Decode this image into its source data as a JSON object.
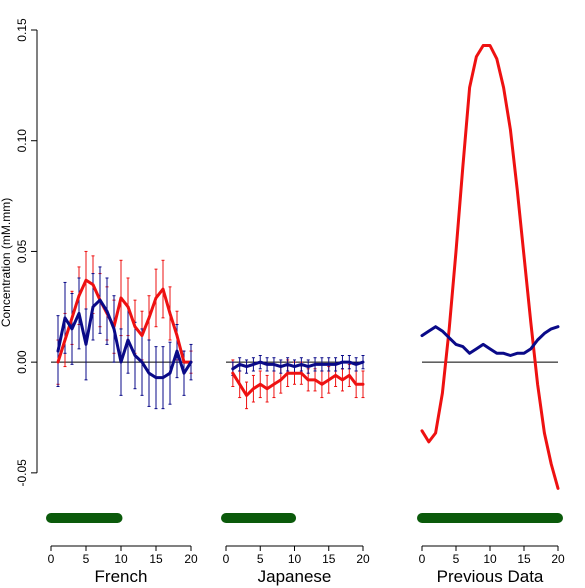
{
  "chart_data": {
    "type": "line",
    "ylabel": "Concentration (mM.mm)",
    "ylim": [
      -0.06,
      0.15
    ],
    "yticks": [
      -0.05,
      0.0,
      0.05,
      0.1,
      0.15
    ],
    "ytick_labels": [
      "-0.05",
      "0.00",
      "0.05",
      "0.10",
      "0.15"
    ],
    "colors": {
      "red": "#ee1111",
      "blue": "#0a0a88",
      "bar": "#0b5a0b",
      "zero": "#000000"
    },
    "panels": [
      {
        "label": "French",
        "xlim": [
          0,
          20
        ],
        "xticks": [
          0,
          5,
          10,
          15,
          20
        ],
        "xtick_labels": [
          "0",
          "5",
          "10",
          "15",
          "20"
        ],
        "bar": [
          0,
          9.5
        ],
        "series": [
          {
            "color": "red",
            "x": [
              1,
              2,
              3,
              4,
              5,
              6,
              7,
              8,
              9,
              10,
              11,
              12,
              13,
              14,
              15,
              16,
              17,
              18,
              19,
              20
            ],
            "y": [
              0.0,
              0.01,
              0.02,
              0.03,
              0.037,
              0.035,
              0.028,
              0.022,
              0.016,
              0.029,
              0.025,
              0.016,
              0.012,
              0.02,
              0.029,
              0.033,
              0.022,
              0.012,
              0.0,
              0.0
            ],
            "err": [
              0.01,
              0.012,
              0.012,
              0.013,
              0.013,
              0.013,
              0.012,
              0.012,
              0.012,
              0.017,
              0.013,
              0.012,
              0.011,
              0.01,
              0.013,
              0.013,
              0.012,
              0.011,
              0.005,
              0.005
            ]
          },
          {
            "color": "blue",
            "x": [
              1,
              2,
              3,
              4,
              5,
              6,
              7,
              8,
              9,
              10,
              11,
              12,
              13,
              14,
              15,
              16,
              17,
              18,
              19,
              20
            ],
            "y": [
              0.005,
              0.02,
              0.015,
              0.022,
              0.008,
              0.025,
              0.028,
              0.023,
              0.015,
              0.0,
              0.01,
              0.003,
              0.0,
              -0.005,
              -0.007,
              -0.007,
              -0.005,
              0.005,
              -0.005,
              0.0
            ],
            "err": [
              0.016,
              0.016,
              0.016,
              0.016,
              0.016,
              0.015,
              0.015,
              0.015,
              0.015,
              0.015,
              0.015,
              0.015,
              0.015,
              0.015,
              0.014,
              0.014,
              0.014,
              0.012,
              0.01,
              0.008
            ]
          }
        ]
      },
      {
        "label": "Japanese",
        "xlim": [
          0,
          20
        ],
        "xticks": [
          0,
          5,
          10,
          15,
          20
        ],
        "xtick_labels": [
          "0",
          "5",
          "10",
          "15",
          "20"
        ],
        "bar": [
          0,
          9.5
        ],
        "series": [
          {
            "color": "red",
            "x": [
              1,
              2,
              3,
              4,
              5,
              6,
              7,
              8,
              9,
              10,
              11,
              12,
              13,
              14,
              15,
              16,
              17,
              18,
              19,
              20
            ],
            "y": [
              -0.005,
              -0.01,
              -0.015,
              -0.012,
              -0.01,
              -0.012,
              -0.01,
              -0.008,
              -0.005,
              -0.005,
              -0.005,
              -0.008,
              -0.008,
              -0.01,
              -0.008,
              -0.006,
              -0.008,
              -0.006,
              -0.01,
              -0.01
            ],
            "err": [
              0.006,
              0.006,
              0.006,
              0.006,
              0.006,
              0.006,
              0.006,
              0.006,
              0.006,
              0.005,
              0.005,
              0.005,
              0.005,
              0.006,
              0.006,
              0.005,
              0.005,
              0.005,
              0.006,
              0.006
            ]
          },
          {
            "color": "blue",
            "x": [
              1,
              2,
              3,
              4,
              5,
              6,
              7,
              8,
              9,
              10,
              11,
              12,
              13,
              14,
              15,
              16,
              17,
              18,
              19,
              20
            ],
            "y": [
              -0.003,
              -0.001,
              -0.002,
              -0.001,
              0.0,
              -0.001,
              -0.001,
              -0.002,
              -0.001,
              -0.002,
              -0.001,
              -0.002,
              -0.001,
              -0.001,
              -0.001,
              -0.001,
              0.0,
              0.0,
              -0.001,
              0.0
            ],
            "err": [
              0.003,
              0.003,
              0.003,
              0.003,
              0.003,
              0.003,
              0.003,
              0.003,
              0.003,
              0.003,
              0.003,
              0.003,
              0.003,
              0.003,
              0.003,
              0.003,
              0.003,
              0.003,
              0.003,
              0.003
            ]
          }
        ]
      },
      {
        "label": "Previous Data",
        "xlim": [
          0,
          20
        ],
        "xticks": [
          0,
          5,
          10,
          15,
          20
        ],
        "xtick_labels": [
          "0",
          "5",
          "10",
          "15",
          "20"
        ],
        "bar": [
          0,
          20
        ],
        "series": [
          {
            "color": "red",
            "x": [
              0,
              1,
              2,
              3,
              4,
              5,
              6,
              7,
              8,
              9,
              10,
              11,
              12,
              13,
              14,
              15,
              16,
              17,
              18,
              19,
              20
            ],
            "y": [
              -0.031,
              -0.036,
              -0.032,
              -0.014,
              0.015,
              0.05,
              0.088,
              0.124,
              0.138,
              0.143,
              0.143,
              0.137,
              0.124,
              0.105,
              0.078,
              0.048,
              0.018,
              -0.01,
              -0.032,
              -0.046,
              -0.057
            ]
          },
          {
            "color": "blue",
            "x": [
              0,
              1,
              2,
              3,
              4,
              5,
              6,
              7,
              8,
              9,
              10,
              11,
              12,
              13,
              14,
              15,
              16,
              17,
              18,
              19,
              20
            ],
            "y": [
              0.012,
              0.014,
              0.016,
              0.014,
              0.011,
              0.008,
              0.007,
              0.004,
              0.006,
              0.008,
              0.006,
              0.004,
              0.004,
              0.003,
              0.004,
              0.004,
              0.006,
              0.01,
              0.013,
              0.015,
              0.016
            ]
          }
        ]
      }
    ]
  }
}
